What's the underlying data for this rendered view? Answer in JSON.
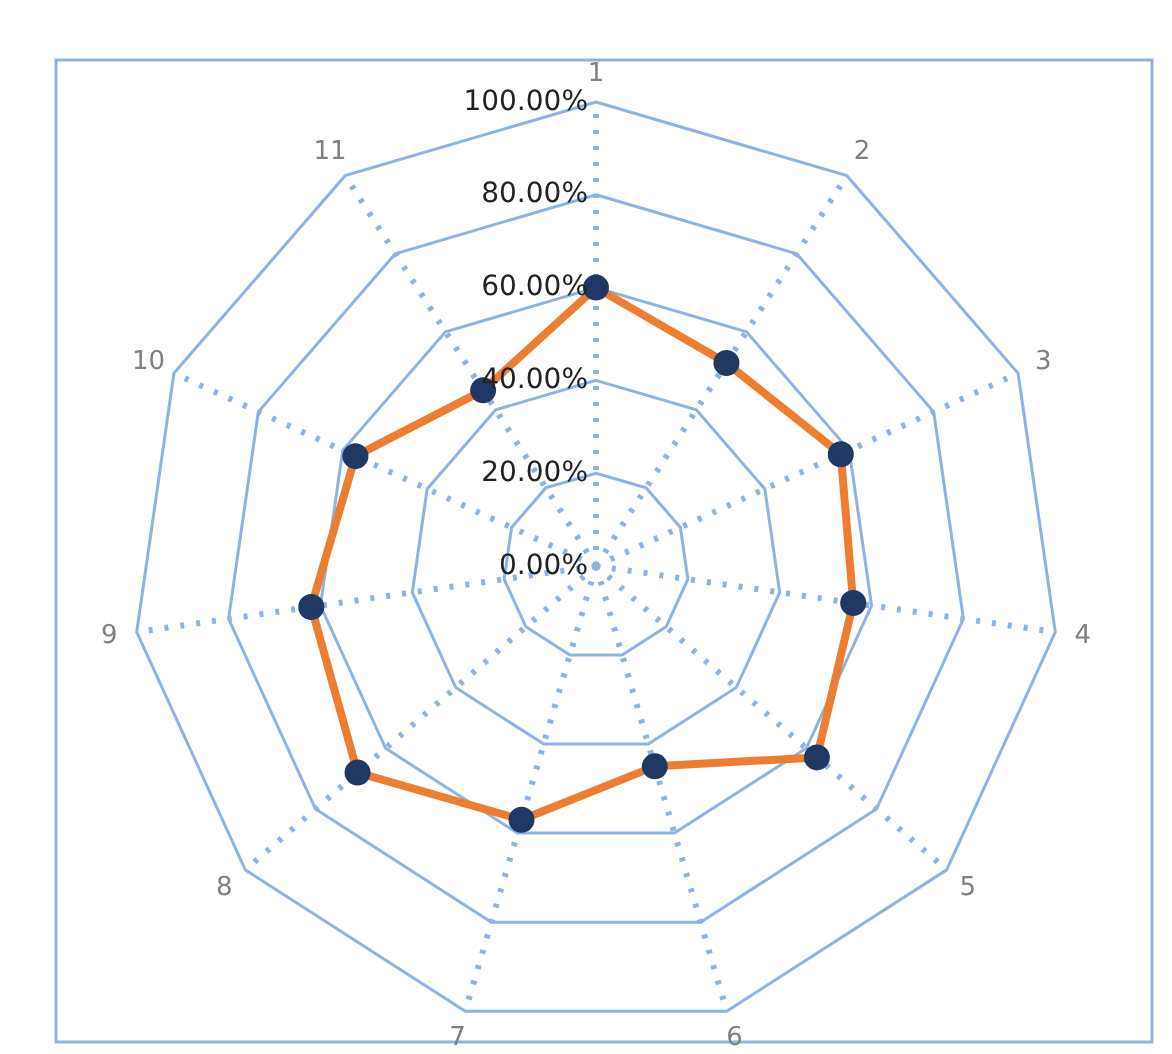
{
  "chart_data": {
    "type": "radar",
    "categories": [
      "1",
      "2",
      "3",
      "4",
      "5",
      "6",
      "7",
      "8",
      "9",
      "10",
      "11"
    ],
    "series": [
      {
        "color": "#ed7d31",
        "values": [
          60,
          52,
          58,
          56,
          63,
          45,
          57,
          68,
          62,
          57,
          45
        ]
      }
    ],
    "ylim": [
      0,
      100
    ],
    "yticks": [
      {
        "value": 0,
        "label": "0.00%"
      },
      {
        "value": 20,
        "label": "20.00%"
      },
      {
        "value": 40,
        "label": "40.00%"
      },
      {
        "value": 60,
        "label": "60.00%"
      },
      {
        "value": 80,
        "label": "80.00%"
      },
      {
        "value": 100,
        "label": "100.00%"
      }
    ],
    "grid": true,
    "marker": "circle",
    "line_style": "solid"
  }
}
